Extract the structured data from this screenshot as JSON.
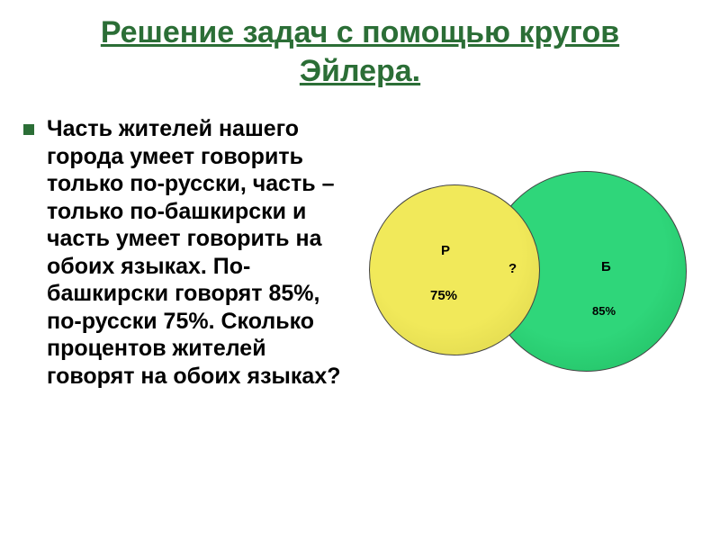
{
  "title": {
    "line1": "Решение задач с помощью кругов",
    "line2": "Эйлера.",
    "color": "#2b6e36"
  },
  "bullet": {
    "color": "#2b6e36"
  },
  "bodyText": "Часть жителей нашего города умеет говорить только по-русски, часть – только по-башкирски и часть умеет говорить на обоих языках. По-башкирски говорят 85%, по-русски 75%. Сколько процентов жителей говорят на обоих языках?",
  "venn": {
    "left": {
      "label": "Р",
      "value": "75%",
      "fill": "#f1e95a",
      "gradientEdge": "#d9d24a"
    },
    "right": {
      "label": "Б",
      "value": "85%",
      "fill": "#2fd67a",
      "gradientEdge": "#1fb95f"
    },
    "intersectionLabel": "?"
  }
}
